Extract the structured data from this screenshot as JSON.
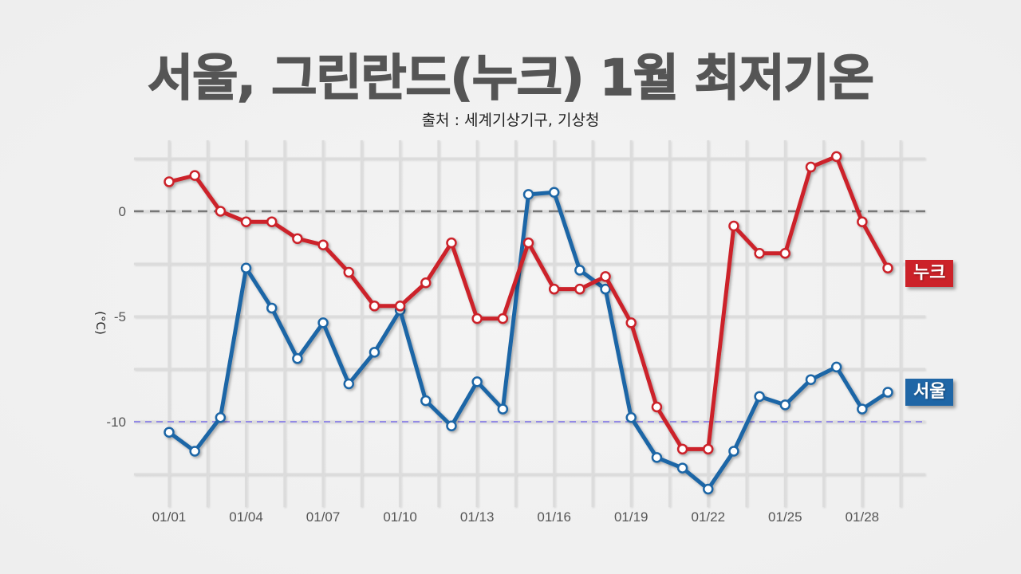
{
  "header": {
    "title": "서울, 그린란드(누크) 1월 최저기온",
    "source": "출처 : 세계기상기구, 기상청"
  },
  "legend": {
    "nuuk": {
      "label": "누크",
      "color": "#cc2229"
    },
    "seoul": {
      "label": "서울",
      "color": "#1f66a6"
    }
  },
  "axes": {
    "ylabel": "(°C)",
    "yticks": [
      {
        "value": 0,
        "label": "0"
      },
      {
        "value": -5,
        "label": "-5"
      },
      {
        "value": -10,
        "label": "-10"
      }
    ],
    "xticks": [
      "01/01",
      "01/04",
      "01/07",
      "01/10",
      "01/13",
      "01/16",
      "01/19",
      "01/22",
      "01/25",
      "01/28"
    ]
  },
  "chart_data": {
    "type": "line",
    "title": "서울, 그린란드(누크) 1월 최저기온",
    "subtitle": "출처 : 세계기상기구, 기상청",
    "xlabel": "",
    "ylabel": "(°C)",
    "x": [
      "01/01",
      "01/02",
      "01/03",
      "01/04",
      "01/05",
      "01/06",
      "01/07",
      "01/08",
      "01/09",
      "01/10",
      "01/11",
      "01/12",
      "01/13",
      "01/14",
      "01/15",
      "01/16",
      "01/17",
      "01/18",
      "01/19",
      "01/20",
      "01/21",
      "01/22",
      "01/23",
      "01/24",
      "01/25",
      "01/26",
      "01/27",
      "01/28",
      "01/29"
    ],
    "series": [
      {
        "name": "누크",
        "color": "#cc2229",
        "values": [
          1.4,
          1.7,
          0.0,
          -0.5,
          -0.5,
          -1.3,
          -1.6,
          -2.9,
          -4.5,
          -4.5,
          -3.4,
          -1.5,
          -5.1,
          -5.1,
          -1.5,
          -3.7,
          -3.7,
          -3.1,
          -5.3,
          -9.3,
          -11.3,
          -11.3,
          -0.7,
          -2.0,
          -2.0,
          2.1,
          2.6,
          -0.5,
          -2.7
        ]
      },
      {
        "name": "서울",
        "color": "#1f66a6",
        "values": [
          -10.5,
          -11.4,
          -9.8,
          -2.7,
          -4.6,
          -7.0,
          -5.3,
          -8.2,
          -6.7,
          -4.7,
          -9.0,
          -10.2,
          -8.1,
          -9.4,
          0.8,
          0.9,
          -2.8,
          -3.7,
          -9.8,
          -11.7,
          -12.2,
          -13.2,
          -11.4,
          -8.8,
          -9.2,
          -8.0,
          -7.4,
          -9.4,
          -8.6
        ]
      }
    ],
    "reference_lines": [
      {
        "value": 0,
        "style": "dashed",
        "color": "#777777"
      },
      {
        "value": -10,
        "style": "dashed",
        "color": "#7b6ee8"
      }
    ],
    "ylim": [
      -13.5,
      3.0
    ],
    "yticks": [
      0,
      -5,
      -10
    ],
    "grid": true,
    "legend_position": "right (inline labels)"
  }
}
